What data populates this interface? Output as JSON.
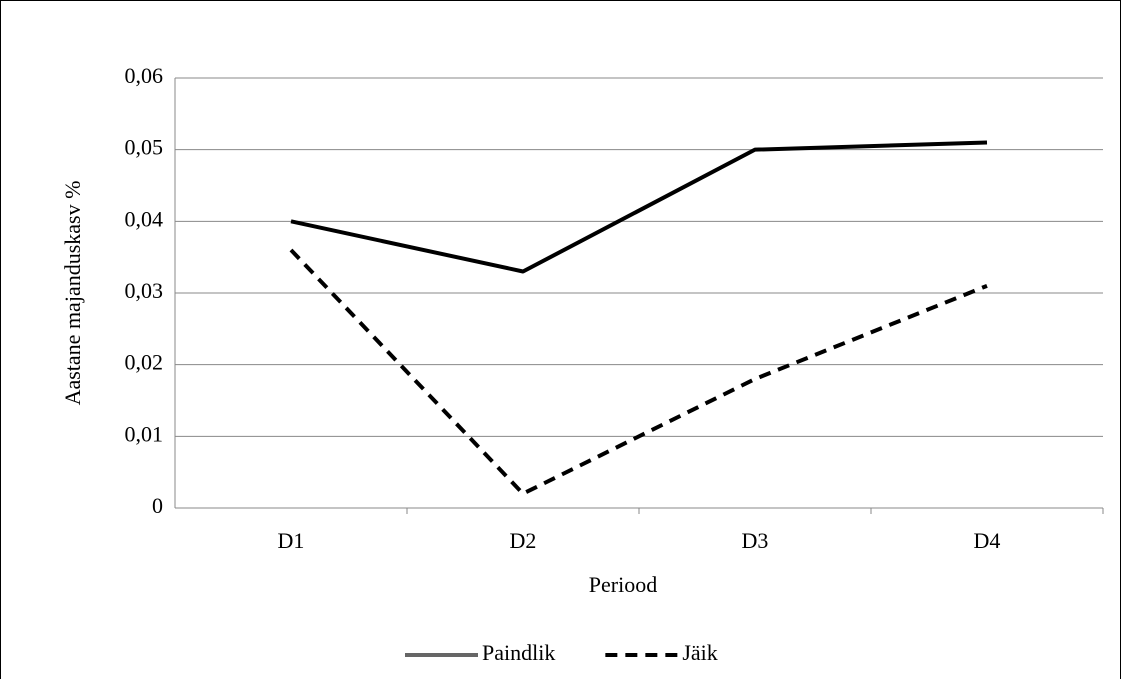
{
  "chart_data": {
    "type": "line",
    "categories": [
      "D1",
      "D2",
      "D3",
      "D4"
    ],
    "series": [
      {
        "name": "Paindlik",
        "color": "#000000",
        "dash": false,
        "values": [
          0.04,
          0.033,
          0.05,
          0.051
        ]
      },
      {
        "name": "Jäik",
        "color": "#000000",
        "dash": true,
        "values": [
          0.036,
          0.002,
          0.018,
          0.031
        ]
      }
    ],
    "ylim": [
      0,
      0.06
    ],
    "yticks": [
      0,
      {
        "value": 0.01,
        "label": "0,01"
      },
      {
        "value": 0.02,
        "label": "0,02"
      },
      {
        "value": 0.03,
        "label": "0,03"
      },
      {
        "value": 0.04,
        "label": "0,04"
      },
      {
        "value": 0.05,
        "label": "0,05"
      },
      {
        "value": 0.06,
        "label": "0,06"
      }
    ],
    "grid": true,
    "xlabel": "Periood",
    "ylabel": "Aastane majanduskasv %",
    "legend": "bottom"
  }
}
